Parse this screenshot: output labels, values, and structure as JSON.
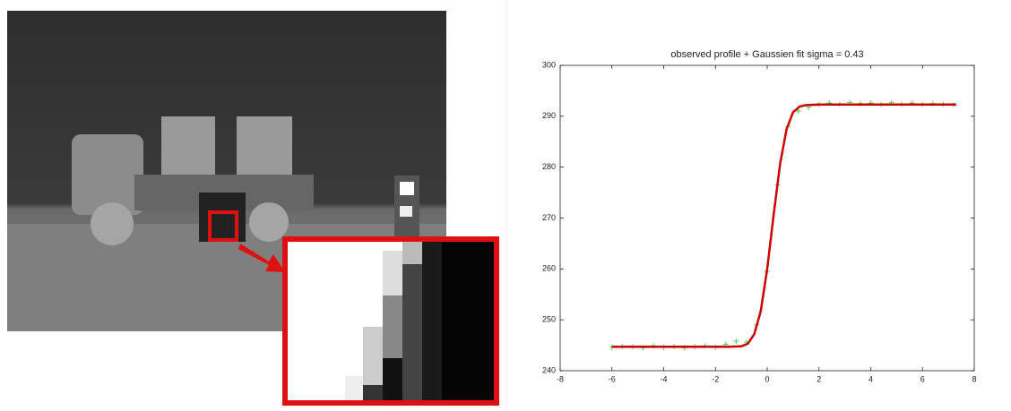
{
  "chart_data": {
    "type": "scatter",
    "title": "observed profile + Gaussien fit sigma = 0.43",
    "xlim": [
      -8,
      8
    ],
    "xticks": [
      -8,
      -6,
      -4,
      -2,
      0,
      2,
      4,
      6,
      8
    ],
    "ylim": [
      240,
      300
    ],
    "yticks": [
      240,
      250,
      260,
      270,
      280,
      290,
      300
    ],
    "series": [
      {
        "type": "scatter",
        "color": "#44dd44",
        "x": [
          -6,
          -5.6,
          -5.2,
          -4.8,
          -4.4,
          -4,
          -3.6,
          -3.2,
          -2.8,
          -2.4,
          -2,
          -1.6,
          -1.2,
          -0.8,
          -0.4,
          0,
          0.4,
          0.8,
          1.2,
          1.6,
          2,
          2.4,
          2.8,
          3.2,
          3.6,
          4,
          4.4,
          4.8,
          5.2,
          5.6,
          6,
          6.4,
          6.8,
          7.2
        ],
        "values": [
          244.6,
          244.8,
          244.7,
          244.5,
          244.9,
          244.6,
          244.8,
          244.5,
          244.7,
          244.9,
          244.6,
          245.2,
          245.8,
          245.6,
          249,
          259.5,
          276.5,
          288,
          291,
          291.8,
          292.3,
          292.6,
          292.4,
          292.7,
          292.5,
          292.6,
          292.3,
          292.7,
          292.4,
          292.6,
          292.3,
          292.5,
          292.4,
          292.2
        ]
      },
      {
        "type": "line",
        "color": "#cc0000",
        "x": [
          -6,
          -4,
          -2,
          -1.5,
          -1,
          -0.75,
          -0.5,
          -0.25,
          0,
          0.25,
          0.5,
          0.75,
          1,
          1.25,
          1.5,
          2,
          4,
          7.3
        ],
        "values": [
          244.7,
          244.7,
          244.7,
          244.7,
          244.8,
          245.3,
          247.2,
          251.7,
          260.0,
          270.7,
          280.7,
          287.5,
          290.8,
          291.9,
          292.2,
          292.3,
          292.3,
          292.3
        ]
      }
    ]
  }
}
